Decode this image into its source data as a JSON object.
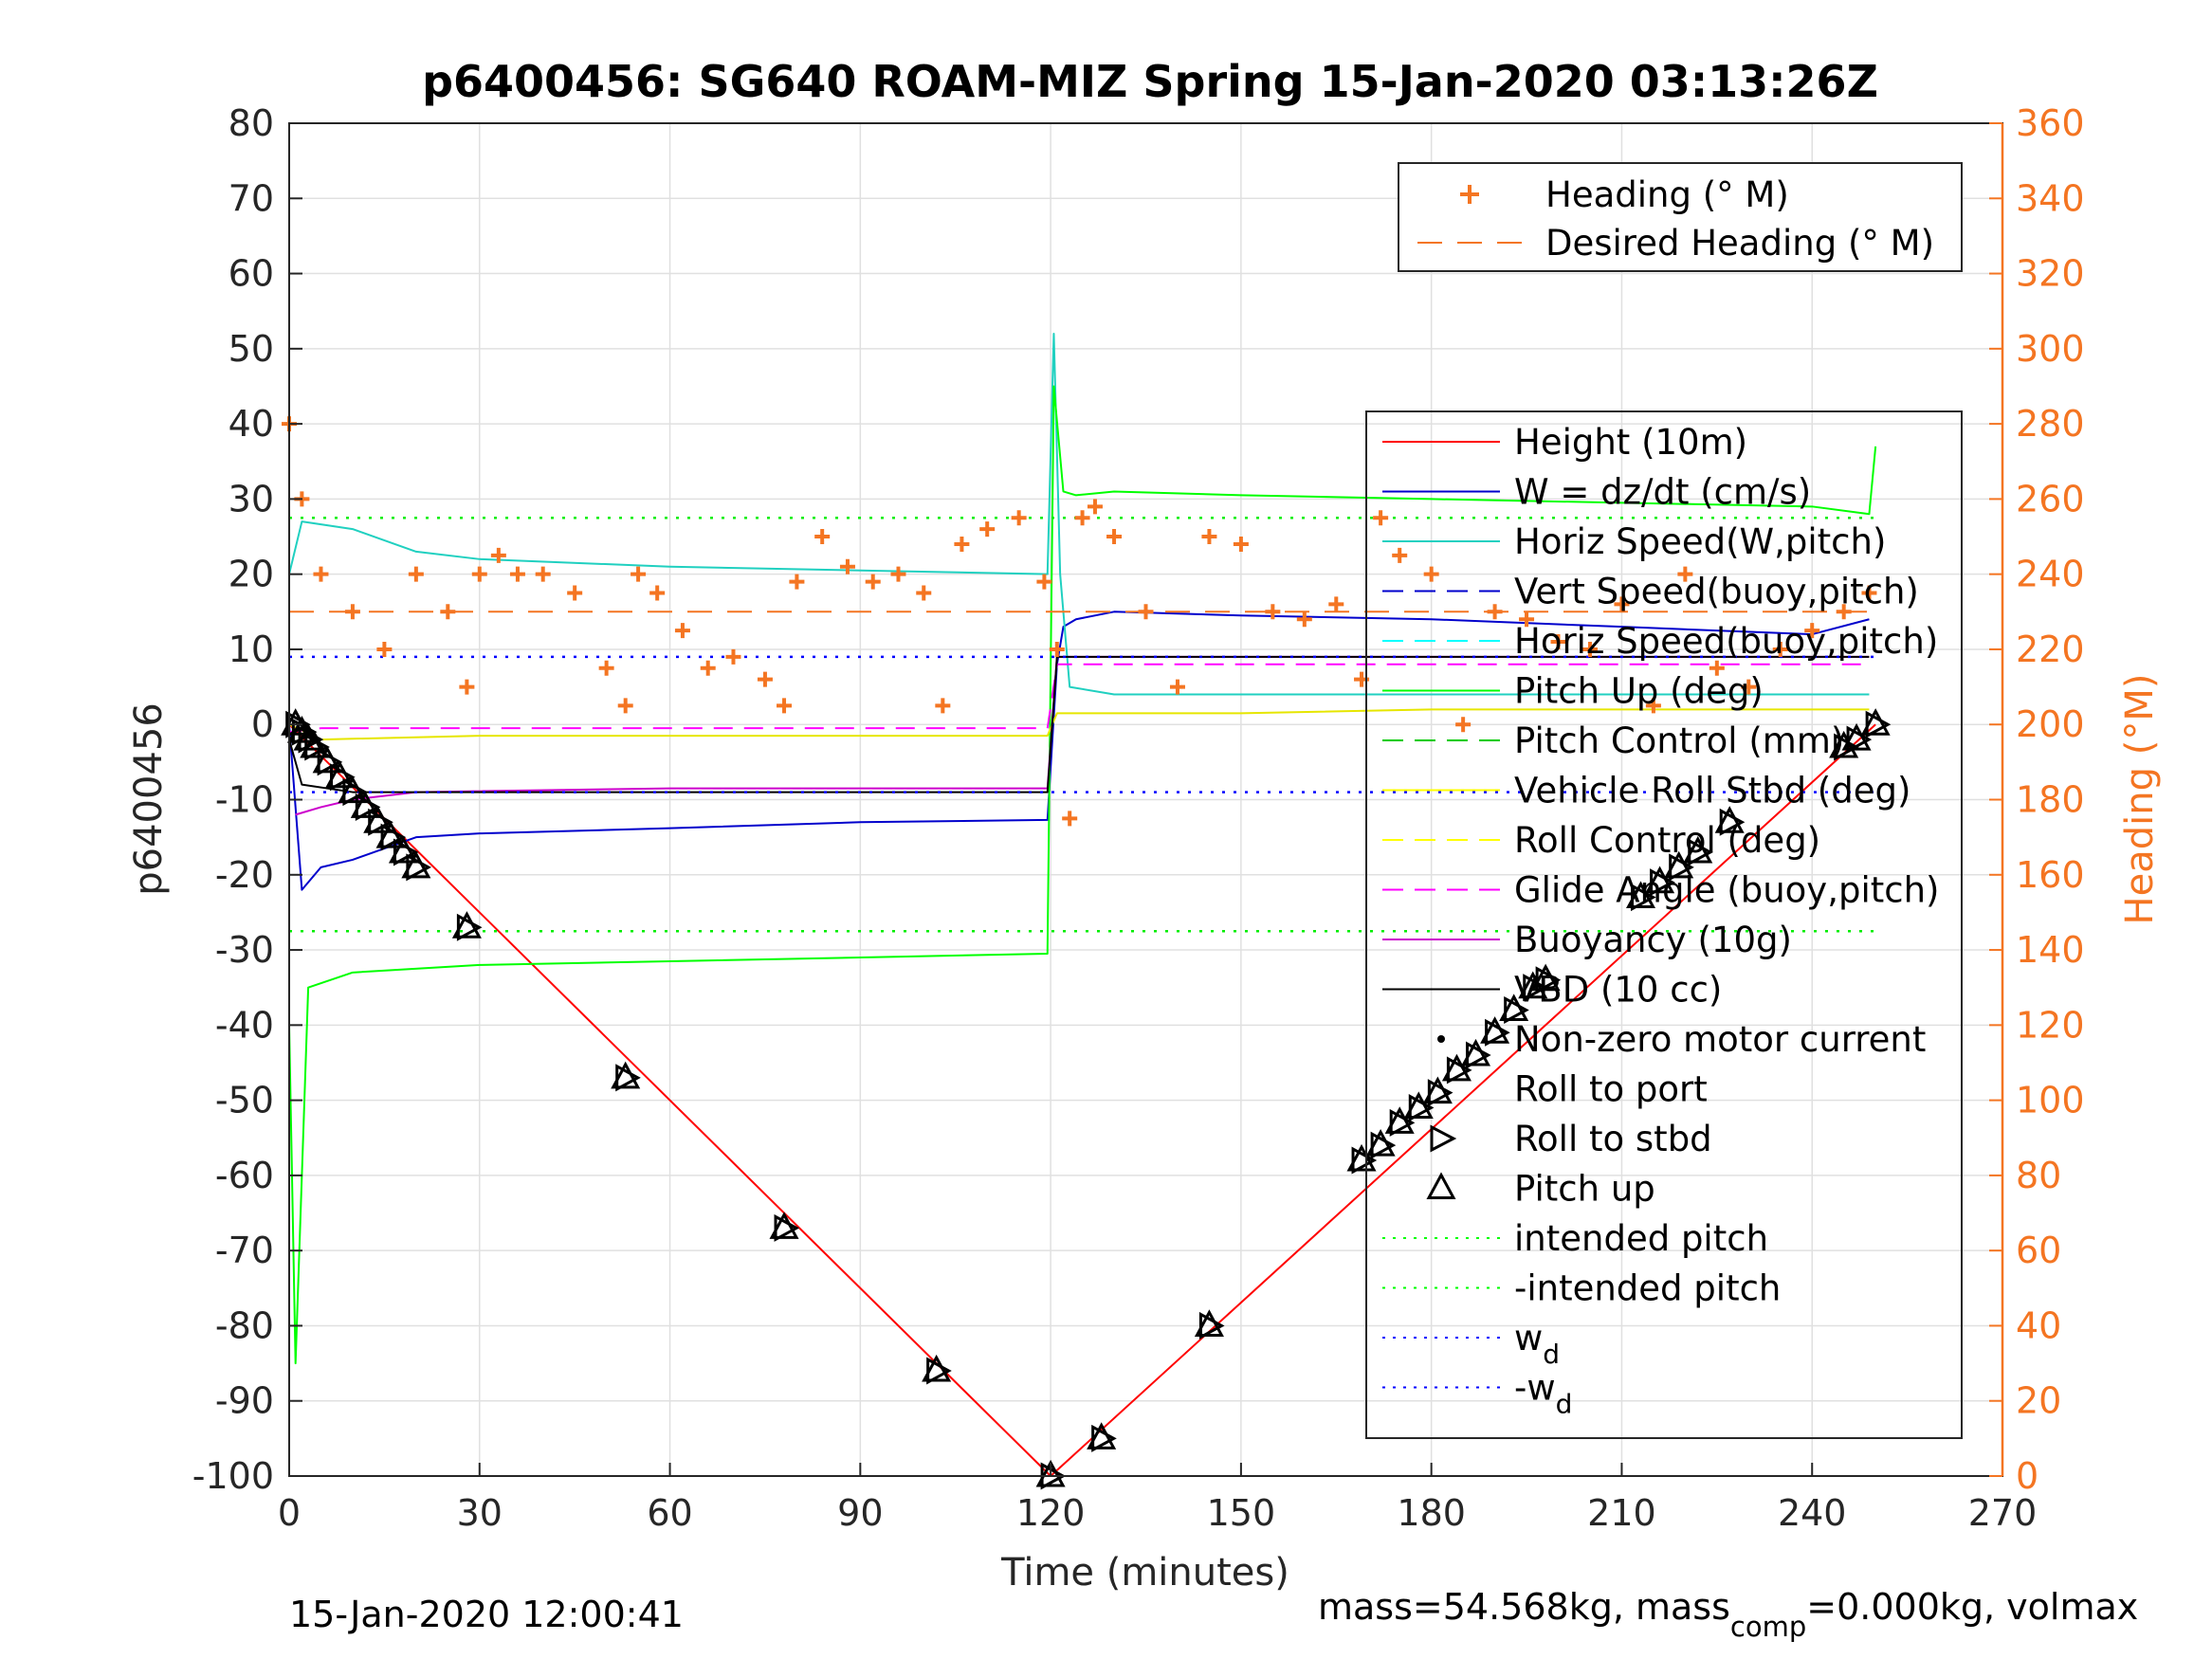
{
  "chart_data": {
    "type": "line",
    "title": "p6400456: SG640 ROAM-MIZ Spring 15-Jan-2020 03:13:26Z",
    "xlabel": "Time (minutes)",
    "ylabel_left": "p6400456",
    "ylabel_right": "Heading (°M)",
    "xlim": [
      0,
      270
    ],
    "ylim_left": [
      -100,
      80
    ],
    "ylim_right": [
      0,
      360
    ],
    "x_ticks": [
      "0",
      "30",
      "60",
      "90",
      "120",
      "150",
      "180",
      "210",
      "240",
      "270"
    ],
    "y_ticks_left": [
      "80",
      "70",
      "60",
      "50",
      "40",
      "30",
      "20",
      "10",
      "0",
      "-10",
      "-20",
      "-30",
      "-40",
      "-50",
      "-60",
      "-70",
      "-80",
      "-90",
      "-100"
    ],
    "y_ticks_right": [
      "360",
      "340",
      "320",
      "300",
      "280",
      "260",
      "240",
      "220",
      "200",
      "180",
      "160",
      "140",
      "120",
      "100",
      "80",
      "60",
      "40",
      "20",
      "0"
    ],
    "grid": true,
    "footer_left": "15-Jan-2020 12:00:41",
    "footer_right": {
      "a": "mass=54.568kg, mass",
      "sub": "comp",
      "b": "=0.000kg, volmax"
    },
    "heading_legend": [
      {
        "label": "Heading (° M)",
        "color": "#f47522",
        "style": "plus"
      },
      {
        "label": "Desired Heading (° M)",
        "color": "#f47522",
        "style": "dash"
      }
    ],
    "legend": [
      {
        "label": "Height (10m)",
        "color": "#ff0000",
        "style": "solid"
      },
      {
        "label": "W = dz/dt (cm/s)",
        "color": "#0000cc",
        "style": "solid"
      },
      {
        "label": "Horiz Speed(W,pitch)",
        "color": "#20d0c0",
        "style": "solid"
      },
      {
        "label": "Vert Speed(buoy,pitch)",
        "color": "#0000cc",
        "style": "dash"
      },
      {
        "label": "Horiz Speed(buoy,pitch)",
        "color": "#00ffff",
        "style": "dash"
      },
      {
        "label": "Pitch Up (deg)",
        "color": "#00ff00",
        "style": "solid"
      },
      {
        "label": "Pitch Control (mm)",
        "color": "#00cc00",
        "style": "dash"
      },
      {
        "label": "Vehicle Roll Stbd (deg)",
        "color": "#ffff00",
        "style": "solid"
      },
      {
        "label": "Roll Control (deg)",
        "color": "#ffff00",
        "style": "dash"
      },
      {
        "label": "Glide Angle (buoy,pitch)",
        "color": "#ff00ff",
        "style": "dash"
      },
      {
        "label": "Buoyancy (10g)",
        "color": "#cc00cc",
        "style": "solid"
      },
      {
        "label": "VBD (10 cc)",
        "color": "#000000",
        "style": "solid"
      },
      {
        "label": "Non-zero motor current",
        "color": "#000000",
        "style": "dot"
      },
      {
        "label": "Roll to port",
        "color": "#000000",
        "style": "none"
      },
      {
        "label": "Roll to stbd",
        "color": "#000000",
        "style": "tri-right"
      },
      {
        "label": "Pitch up",
        "color": "#000000",
        "style": "tri-up"
      },
      {
        "label": "intended pitch",
        "color": "#00ff00",
        "style": "dotted"
      },
      {
        "label": "-intended pitch",
        "color": "#00ff00",
        "style": "dotted"
      },
      {
        "label": "w",
        "sub": "d",
        "color": "#0000ff",
        "style": "dotted"
      },
      {
        "label": "-w",
        "sub": "d",
        "color": "#0000ff",
        "style": "dotted"
      }
    ],
    "series": [
      {
        "name": "Height (10m)",
        "x": [
          0,
          120,
          250
        ],
        "y": [
          0,
          -100,
          0
        ]
      },
      {
        "name": "W = dz/dt (cm/s)",
        "x": [
          0,
          2,
          5,
          10,
          20,
          30,
          60,
          90,
          119.5,
          121,
          122,
          124,
          130,
          150,
          180,
          210,
          240,
          249
        ],
        "y": [
          0,
          -22,
          -19,
          -18,
          -15,
          -14.5,
          -13.8,
          -13,
          -12.7,
          8,
          13,
          14,
          15,
          14.5,
          14,
          13,
          12,
          14
        ]
      },
      {
        "name": "Horiz Speed(W,pitch)",
        "x": [
          0,
          2,
          10,
          20,
          30,
          60,
          90,
          119.5,
          120.5,
          121.5,
          123,
          130,
          150,
          180,
          210,
          240,
          249
        ],
        "y": [
          20,
          27,
          26,
          23,
          22,
          21,
          20.5,
          20,
          52,
          20,
          5,
          4,
          4,
          4,
          4,
          4,
          4
        ]
      },
      {
        "name": "Pitch Up (deg)",
        "x": [
          0,
          1,
          3,
          10,
          30,
          60,
          90,
          119.5,
          120.5,
          122,
          124,
          130,
          150,
          180,
          210,
          240,
          249,
          250
        ],
        "y": [
          -40,
          -85,
          -35,
          -33,
          -32,
          -31.5,
          -31,
          -30.5,
          45,
          31,
          30.5,
          31,
          30.5,
          30,
          29.5,
          29,
          28,
          37
        ]
      },
      {
        "name": "Vehicle Roll Stbd (deg)",
        "x": [
          0,
          5,
          30,
          60,
          90,
          119.5,
          121,
          130,
          150,
          180,
          210,
          240,
          249
        ],
        "y": [
          0,
          -2,
          -1.5,
          -1.5,
          -1.5,
          -1.5,
          1.5,
          1.5,
          1.5,
          2,
          2,
          2,
          2
        ]
      },
      {
        "name": "Glide Angle (buoy,pitch)",
        "x": [
          0,
          5,
          60,
          119.5,
          121,
          200,
          249
        ],
        "y": [
          -1,
          -0.5,
          -0.5,
          -0.5,
          8,
          8,
          8
        ]
      },
      {
        "name": "Buoyancy (10g)",
        "x": [
          1,
          5,
          10,
          20,
          60,
          119.5,
          121,
          249
        ],
        "y": [
          -12,
          -11,
          -10,
          -9,
          -8.5,
          -8.5,
          9,
          9
        ]
      },
      {
        "name": "VBD (10 cc)",
        "x": [
          0,
          2,
          10,
          119.5,
          121,
          249
        ],
        "y": [
          -2,
          -8,
          -9,
          -9,
          9,
          9
        ]
      },
      {
        "name": "intended pitch",
        "x": [
          0,
          250
        ],
        "y": [
          27.5,
          27.5
        ]
      },
      {
        "name": "-intended pitch",
        "x": [
          0,
          250
        ],
        "y": [
          -27.5,
          -27.5
        ]
      },
      {
        "name": "w_d",
        "x": [
          0,
          250
        ],
        "y": [
          9,
          9
        ]
      },
      {
        "name": "-w_d",
        "x": [
          0,
          250
        ],
        "y": [
          -9,
          -9
        ]
      },
      {
        "name": "Desired Heading (° M)",
        "x": [
          0,
          250
        ],
        "y_right": [
          230,
          230
        ]
      },
      {
        "name": "Heading (° M)",
        "x": [
          0,
          2,
          5,
          10,
          15,
          20,
          25,
          28,
          30,
          33,
          36,
          40,
          45,
          50,
          53,
          55,
          58,
          62,
          66,
          70,
          75,
          78,
          80,
          84,
          88,
          92,
          96,
          100,
          103,
          106,
          110,
          115,
          119,
          121,
          123,
          125,
          127,
          130,
          135,
          140,
          145,
          150,
          155,
          160,
          165,
          169,
          172,
          175,
          180,
          185,
          190,
          195,
          200,
          205,
          210,
          215,
          220,
          225,
          230,
          235,
          240,
          245,
          249
        ],
        "y_right": [
          280,
          260,
          240,
          230,
          220,
          240,
          230,
          210,
          240,
          245,
          240,
          240,
          235,
          215,
          205,
          240,
          235,
          225,
          215,
          218,
          212,
          205,
          238,
          250,
          242,
          238,
          240,
          235,
          205,
          248,
          252,
          255,
          238,
          220,
          175,
          255,
          258,
          250,
          230,
          210,
          250,
          248,
          230,
          228,
          232,
          212,
          255,
          245,
          240,
          200,
          230,
          228,
          222,
          220,
          232,
          205,
          240,
          215,
          210,
          220,
          225,
          230,
          235
        ]
      },
      {
        "name": "Pitch up markers",
        "x": [
          1,
          2,
          3,
          4,
          6,
          8,
          10,
          12,
          14,
          16,
          18,
          20,
          28,
          53,
          78,
          102,
          120,
          128,
          145,
          169,
          172,
          175,
          178,
          181,
          184,
          187,
          190,
          193,
          196,
          198,
          213,
          216,
          219,
          222,
          227,
          245,
          247,
          250
        ],
        "y": [
          0,
          -1,
          -2,
          -3,
          -5,
          -7,
          -9,
          -11,
          -13,
          -15,
          -17,
          -19,
          -27,
          -47,
          -67,
          -86,
          -100,
          -95,
          -80,
          -58,
          -56,
          -53,
          -51,
          -49,
          -46,
          -44,
          -41,
          -38,
          -35,
          -34,
          -23,
          -21,
          -19,
          -17,
          -13,
          -3,
          -2,
          0
        ]
      }
    ]
  }
}
